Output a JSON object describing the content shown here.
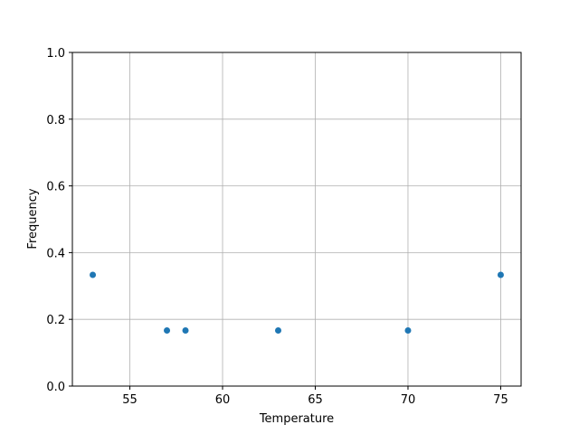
{
  "chart_data": {
    "type": "scatter",
    "title": "",
    "xlabel": "Temperature",
    "ylabel": "Frequency",
    "xlim": [
      51.9,
      76.1
    ],
    "ylim": [
      0,
      1
    ],
    "grid": true,
    "x_ticks": [
      55,
      60,
      65,
      70,
      75
    ],
    "y_ticks": [
      "0.0",
      "0.2",
      "0.4",
      "0.6",
      "0.8",
      "1.0"
    ],
    "x": [
      53,
      57,
      58,
      63,
      70,
      75
    ],
    "y": [
      0.3333,
      0.1667,
      0.1667,
      0.1667,
      0.1667,
      0.3333
    ],
    "color": "#1f77b4"
  }
}
